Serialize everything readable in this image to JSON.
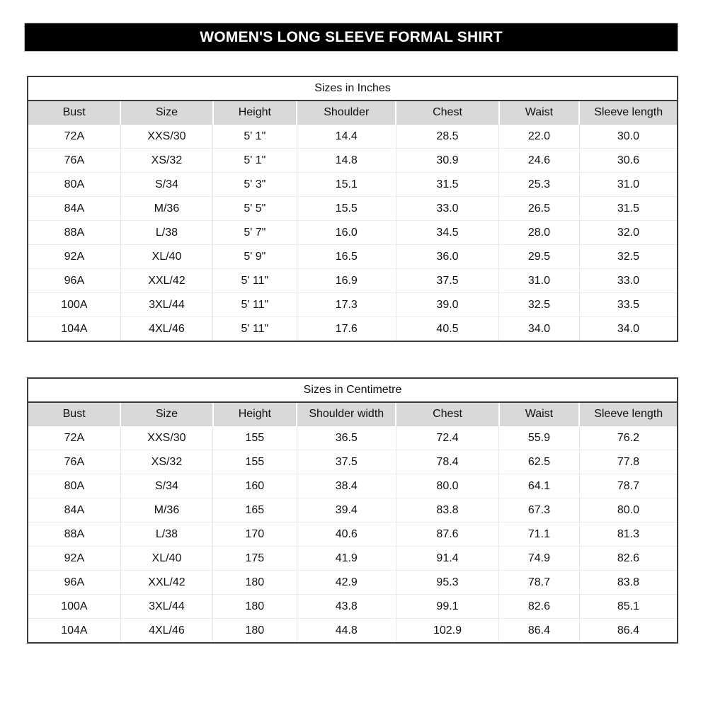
{
  "title_bar": {
    "text": "WOMEN'S LONG SLEEVE FORMAL SHIRT"
  },
  "chart_data": [
    {
      "type": "table",
      "title": "Sizes in Inches",
      "columns": [
        "Bust",
        "Size",
        "Height",
        "Shoulder",
        "Chest",
        "Waist",
        "Sleeve length"
      ],
      "rows": [
        [
          "72A",
          "XXS/30",
          "5' 1\"",
          "14.4",
          "28.5",
          "22.0",
          "30.0"
        ],
        [
          "76A",
          "XS/32",
          "5' 1\"",
          "14.8",
          "30.9",
          "24.6",
          "30.6"
        ],
        [
          "80A",
          "S/34",
          "5' 3\"",
          "15.1",
          "31.5",
          "25.3",
          "31.0"
        ],
        [
          "84A",
          "M/36",
          "5' 5\"",
          "15.5",
          "33.0",
          "26.5",
          "31.5"
        ],
        [
          "88A",
          "L/38",
          "5' 7\"",
          "16.0",
          "34.5",
          "28.0",
          "32.0"
        ],
        [
          "92A",
          "XL/40",
          "5' 9\"",
          "16.5",
          "36.0",
          "29.5",
          "32.5"
        ],
        [
          "96A",
          "XXL/42",
          "5' 11\"",
          "16.9",
          "37.5",
          "31.0",
          "33.0"
        ],
        [
          "100A",
          "3XL/44",
          "5' 11\"",
          "17.3",
          "39.0",
          "32.5",
          "33.5"
        ],
        [
          "104A",
          "4XL/46",
          "5' 11\"",
          "17.6",
          "40.5",
          "34.0",
          "34.0"
        ]
      ]
    },
    {
      "type": "table",
      "title": "Sizes in Centimetre",
      "columns": [
        "Bust",
        "Size",
        "Height",
        "Shoulder width",
        "Chest",
        "Waist",
        "Sleeve length"
      ],
      "rows": [
        [
          "72A",
          "XXS/30",
          "155",
          "36.5",
          "72.4",
          "55.9",
          "76.2"
        ],
        [
          "76A",
          "XS/32",
          "155",
          "37.5",
          "78.4",
          "62.5",
          "77.8"
        ],
        [
          "80A",
          "S/34",
          "160",
          "38.4",
          "80.0",
          "64.1",
          "78.7"
        ],
        [
          "84A",
          "M/36",
          "165",
          "39.4",
          "83.8",
          "67.3",
          "80.0"
        ],
        [
          "88A",
          "L/38",
          "170",
          "40.6",
          "87.6",
          "71.1",
          "81.3"
        ],
        [
          "92A",
          "XL/40",
          "175",
          "41.9",
          "91.4",
          "74.9",
          "82.6"
        ],
        [
          "96A",
          "XXL/42",
          "180",
          "42.9",
          "95.3",
          "78.7",
          "83.8"
        ],
        [
          "100A",
          "3XL/44",
          "180",
          "43.8",
          "99.1",
          "82.6",
          "85.1"
        ],
        [
          "104A",
          "4XL/46",
          "180",
          "44.8",
          "102.9",
          "86.4",
          "86.4"
        ]
      ]
    }
  ],
  "colors": {
    "title_bar_bg": "#000000",
    "title_bar_text": "#ffffff",
    "header_fill": "#d9d9d9",
    "outer_border": "#3a3a3a",
    "gridline": "#e7e7e7",
    "text": "#111111"
  }
}
